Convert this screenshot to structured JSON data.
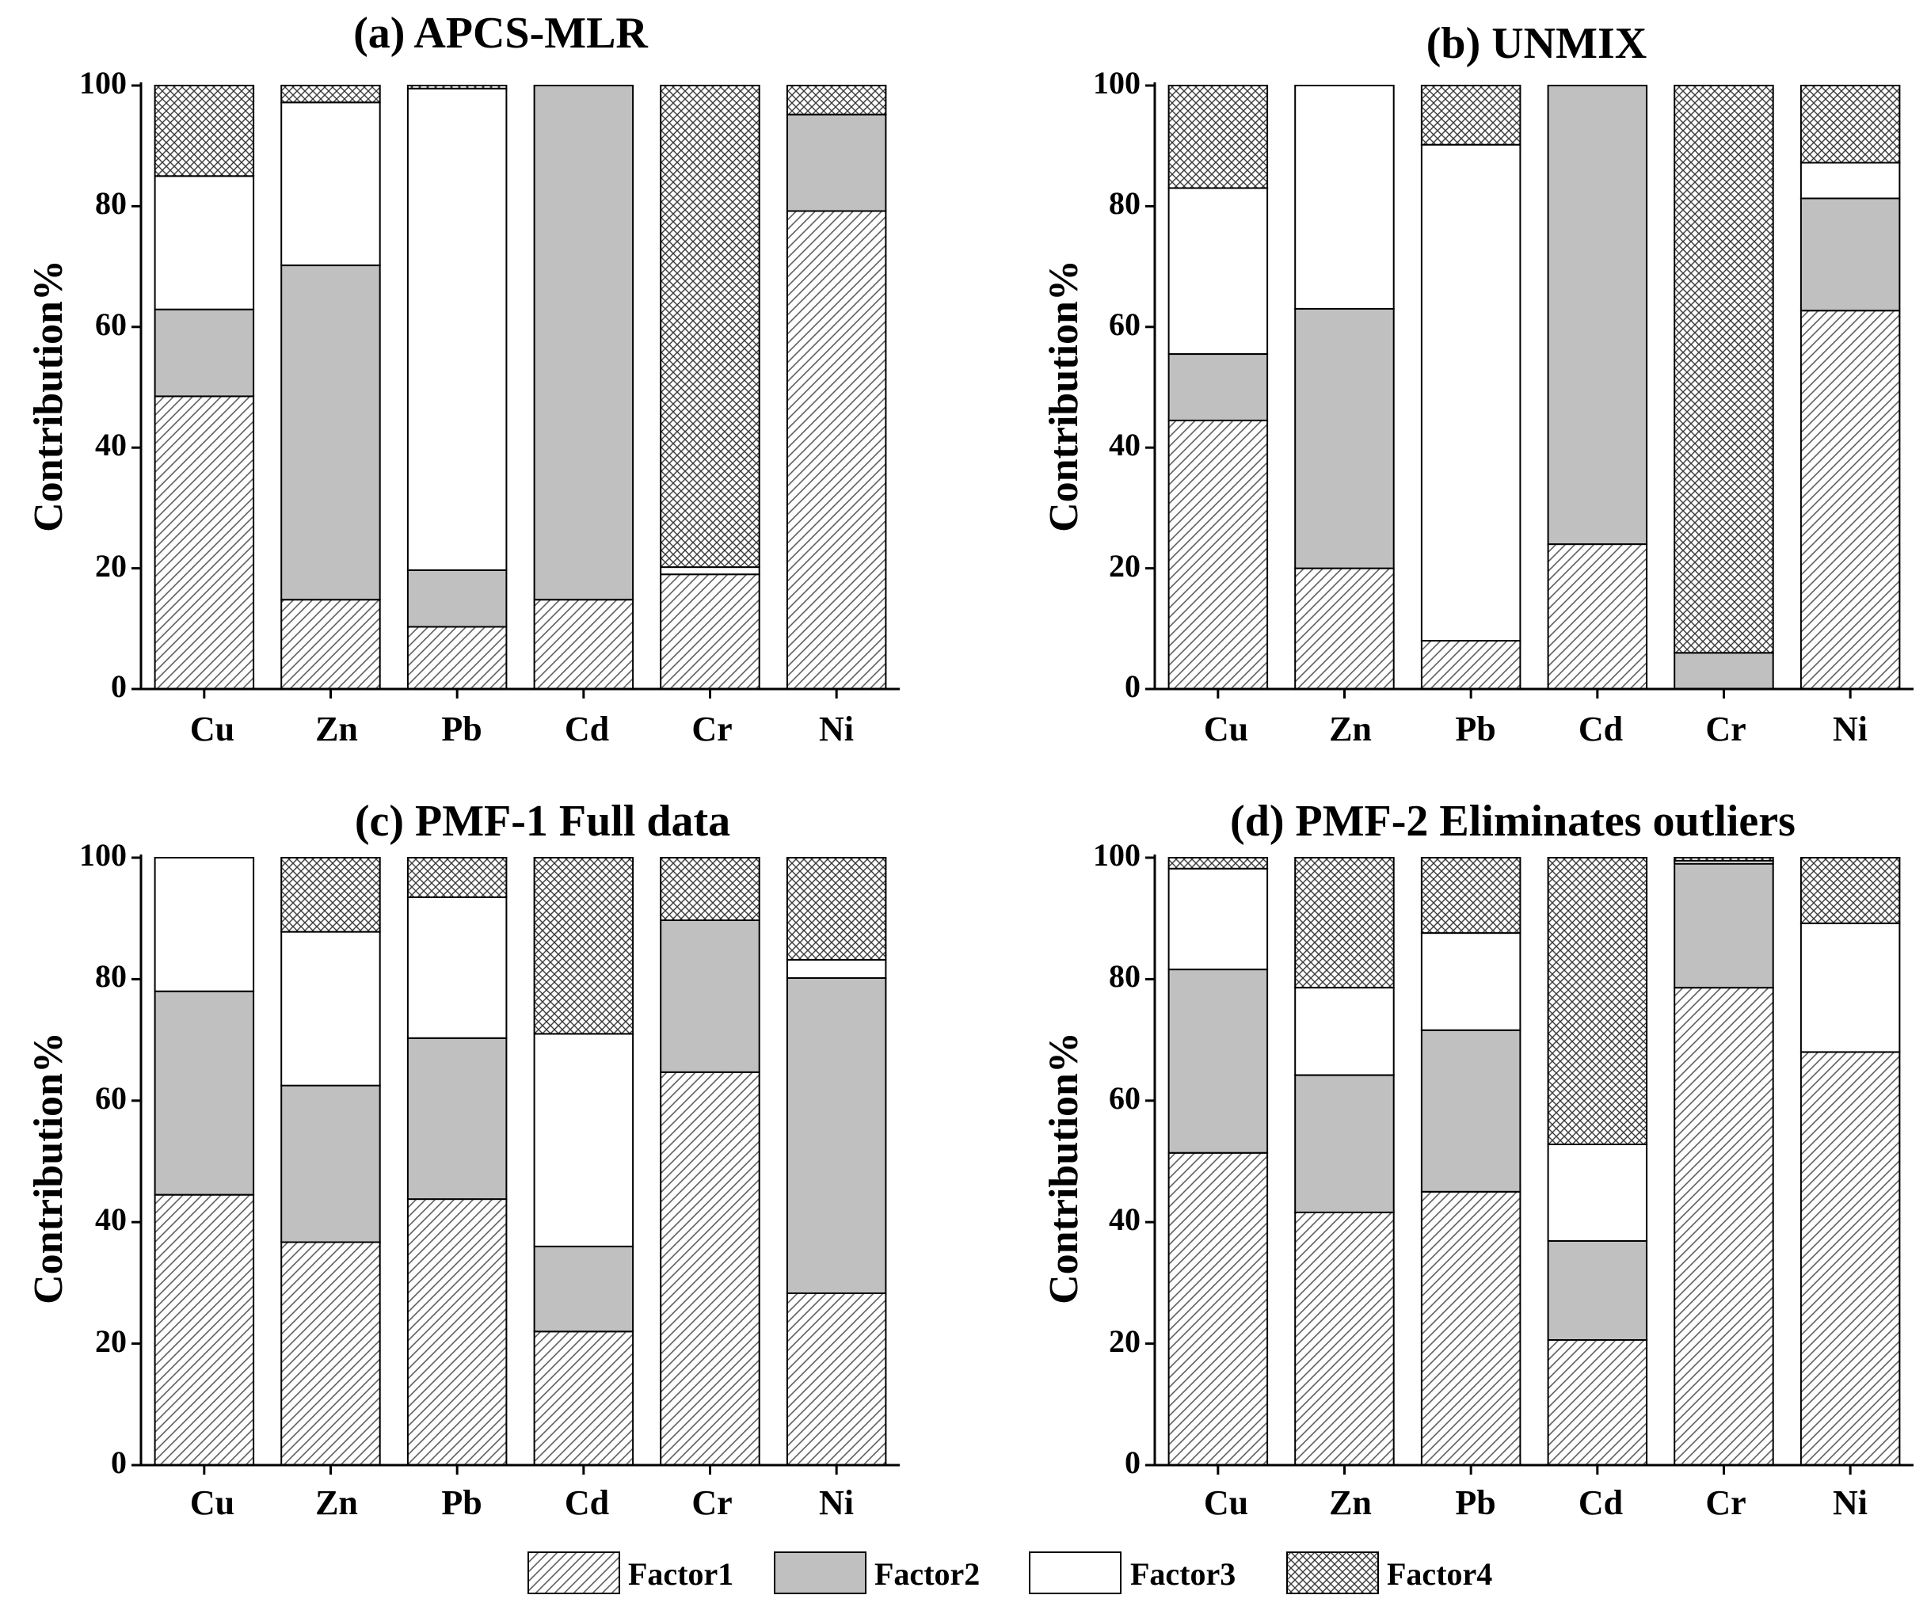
{
  "legend": [
    {
      "label": "Factor1",
      "pattern": "diagonal-hatch"
    },
    {
      "label": "Factor2",
      "pattern": "gray-fill"
    },
    {
      "label": "Factor3",
      "pattern": "white-fill"
    },
    {
      "label": "Factor4",
      "pattern": "crosshatch"
    }
  ],
  "colors": {
    "factor2": "#c0c0c0",
    "factor3": "#ffffff",
    "stroke": "#000000",
    "hatch": "#606060"
  },
  "chart_data": [
    {
      "type": "bar",
      "stacked": true,
      "title": "(a) APCS-MLR",
      "ylabel": "Contribution%",
      "ylim": [
        0,
        100
      ],
      "yticks": [
        "0",
        "20",
        "40",
        "60",
        "80",
        "100"
      ],
      "categories": [
        "Cu",
        "Zn",
        "Pb",
        "Cd",
        "Cr",
        "Ni"
      ],
      "series": [
        {
          "name": "Factor1",
          "values": [
            48.5,
            14.8,
            10.3,
            14.8,
            19.0,
            79.2
          ]
        },
        {
          "name": "Factor2",
          "values": [
            14.4,
            55.4,
            9.4,
            85.2,
            0.0,
            16.0
          ]
        },
        {
          "name": "Factor3",
          "values": [
            22.1,
            27.0,
            79.8,
            0.0,
            1.2,
            0.0
          ]
        },
        {
          "name": "Factor4",
          "values": [
            15.0,
            2.8,
            0.5,
            0.0,
            79.8,
            4.8
          ]
        }
      ]
    },
    {
      "type": "bar",
      "stacked": true,
      "title": "(b) UNMIX",
      "ylabel": "Contribution%",
      "ylim": [
        0,
        100
      ],
      "yticks": [
        "0",
        "20",
        "40",
        "60",
        "80",
        "100"
      ],
      "categories": [
        "Cu",
        "Zn",
        "Pb",
        "Cd",
        "Cr",
        "Ni"
      ],
      "series": [
        {
          "name": "Factor1",
          "values": [
            44.5,
            20.0,
            8.0,
            24.0,
            0.0,
            62.7
          ]
        },
        {
          "name": "Factor2",
          "values": [
            11.0,
            43.0,
            0.0,
            76.0,
            6.0,
            18.6
          ]
        },
        {
          "name": "Factor3",
          "values": [
            27.5,
            37.0,
            82.2,
            0.0,
            0.0,
            5.9
          ]
        },
        {
          "name": "Factor4",
          "values": [
            17.0,
            0.0,
            9.8,
            0.0,
            94.0,
            12.8
          ]
        }
      ]
    },
    {
      "type": "bar",
      "stacked": true,
      "title": "(c) PMF-1  Full data",
      "ylabel": "Contribution%",
      "ylim": [
        0,
        100
      ],
      "yticks": [
        "0",
        "20",
        "40",
        "60",
        "80",
        "100"
      ],
      "categories": [
        "Cu",
        "Zn",
        "Pb",
        "Cd",
        "Cr",
        "Ni"
      ],
      "series": [
        {
          "name": "Factor1",
          "values": [
            44.5,
            36.7,
            43.8,
            22.0,
            64.7,
            28.3
          ]
        },
        {
          "name": "Factor2",
          "values": [
            33.5,
            25.8,
            26.5,
            14.0,
            25.0,
            51.9
          ]
        },
        {
          "name": "Factor3",
          "values": [
            22.0,
            25.3,
            23.2,
            35.0,
            0.0,
            3.0
          ]
        },
        {
          "name": "Factor4",
          "values": [
            0.0,
            12.2,
            6.5,
            29.0,
            10.3,
            16.8
          ]
        }
      ]
    },
    {
      "type": "bar",
      "stacked": true,
      "title": "(d) PMF-2  Eliminates outliers",
      "ylabel": "Contribution%",
      "ylim": [
        0,
        100
      ],
      "yticks": [
        "0",
        "20",
        "40",
        "60",
        "80",
        "100"
      ],
      "categories": [
        "Cu",
        "Zn",
        "Pb",
        "Cd",
        "Cr",
        "Ni"
      ],
      "series": [
        {
          "name": "Factor1",
          "values": [
            51.4,
            41.6,
            45.0,
            20.6,
            78.6,
            68.0
          ]
        },
        {
          "name": "Factor2",
          "values": [
            30.2,
            22.6,
            26.6,
            16.3,
            20.4,
            0.0
          ]
        },
        {
          "name": "Factor3",
          "values": [
            16.6,
            14.4,
            16.0,
            15.9,
            0.5,
            21.2
          ]
        },
        {
          "name": "Factor4",
          "values": [
            1.8,
            21.4,
            12.4,
            47.2,
            0.5,
            10.8
          ]
        }
      ]
    }
  ]
}
